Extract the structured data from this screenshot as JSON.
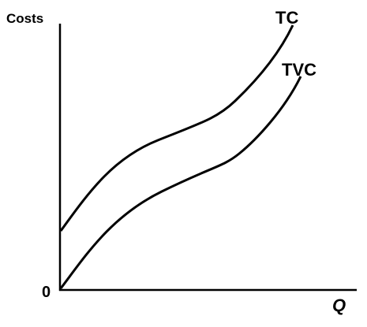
{
  "axes": {
    "y_label": "Costs",
    "x_label": "Q",
    "origin": "0"
  },
  "curves": [
    {
      "label": "TC"
    },
    {
      "label": "TVC"
    }
  ]
}
